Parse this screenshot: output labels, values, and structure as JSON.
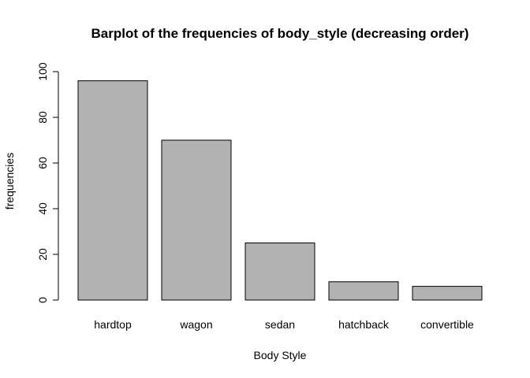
{
  "chart_data": {
    "type": "bar",
    "title": "Barplot of the frequencies of body_style (decreasing order)",
    "xlabel": "Body Style",
    "ylabel": "frequencies",
    "categories": [
      "hardtop",
      "wagon",
      "sedan",
      "hatchback",
      "convertible"
    ],
    "values": [
      96,
      70,
      25,
      8,
      6
    ],
    "ylim": [
      0,
      100
    ],
    "yticks": [
      0,
      20,
      40,
      60,
      80,
      100
    ],
    "bar_color": "#b2b2b2",
    "grid": false,
    "legend": "none"
  }
}
